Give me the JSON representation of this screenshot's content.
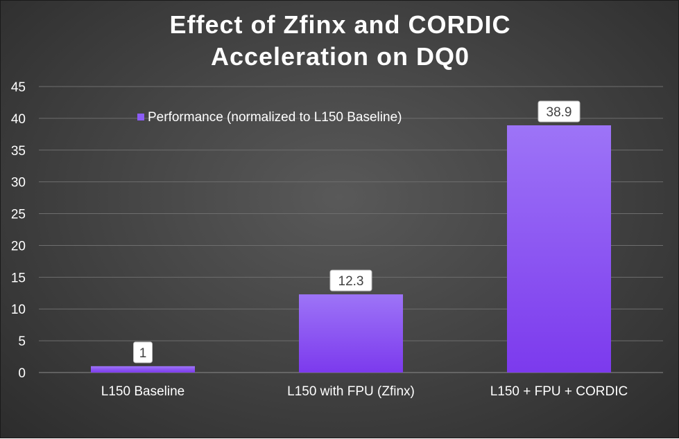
{
  "chart_data": {
    "type": "bar",
    "title_lines": [
      "Effect of Zfinx and CORDIC",
      "Acceleration on DQ0"
    ],
    "categories": [
      "L150 Baseline",
      "L150 with FPU (Zfinx)",
      "L150 + FPU + CORDIC"
    ],
    "series": [
      {
        "name": "Performance (normalized to L150 Baseline)",
        "values": [
          1,
          12.3,
          38.9
        ],
        "data_labels": [
          "1",
          "12.3",
          "38.9"
        ],
        "color": "#8b5cf6"
      }
    ],
    "ylim": [
      0,
      45
    ],
    "yticks": [
      0,
      5,
      10,
      15,
      20,
      25,
      30,
      35,
      40,
      45
    ],
    "ytick_labels": [
      "0",
      "5",
      "10",
      "15",
      "20",
      "25",
      "30",
      "35",
      "40",
      "45"
    ],
    "xlabel": "",
    "ylabel": "",
    "grid": true,
    "legend_position": "top-left"
  },
  "colors": {
    "background": "#3f3f3f",
    "bar_top": "#9d74f7",
    "bar_bottom": "#7c3aed",
    "gridline": "#6e6e6e",
    "text": "#ffffff",
    "label_box": "#ffffff",
    "label_text": "#404040"
  }
}
